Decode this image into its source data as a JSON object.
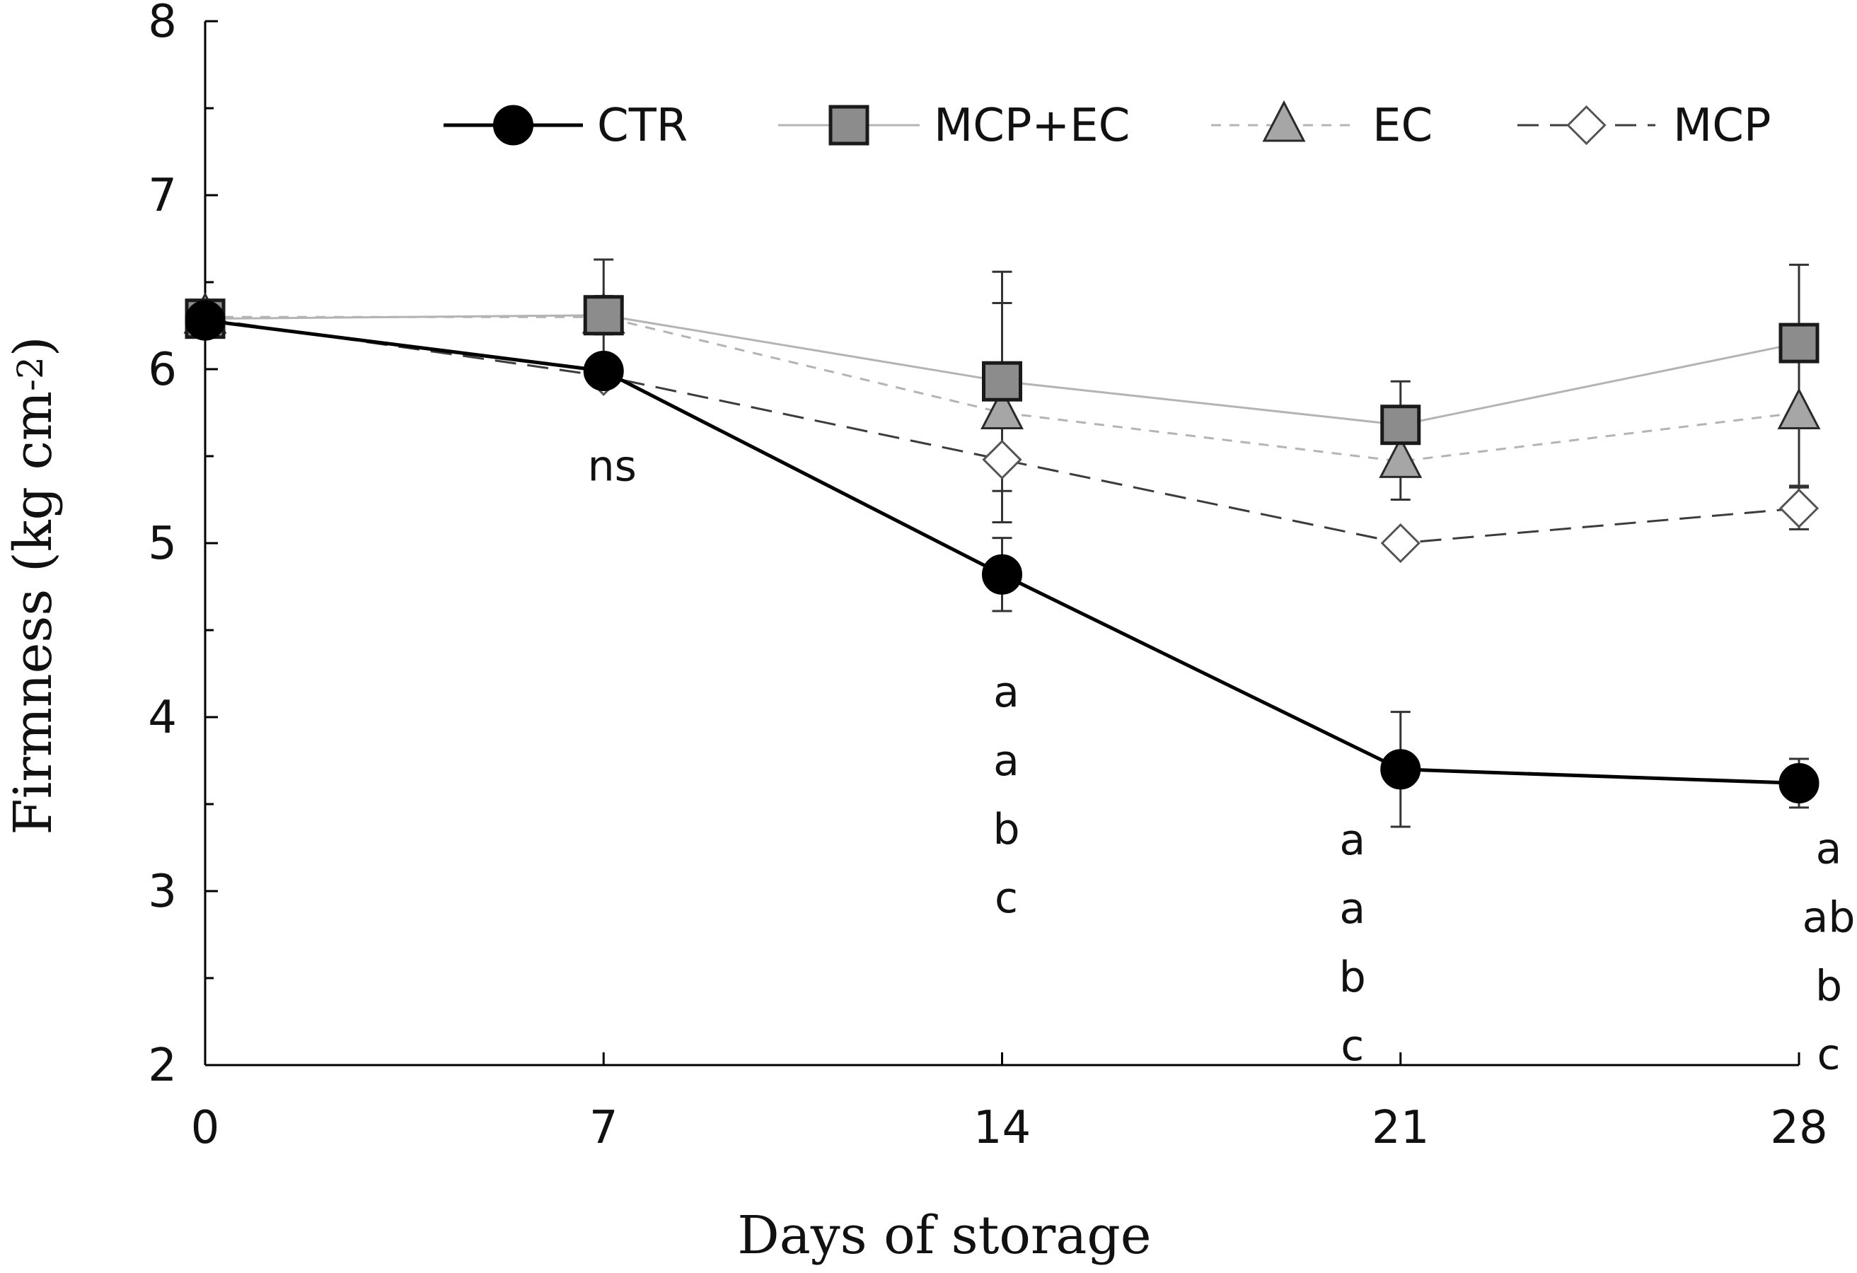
{
  "chart_data": {
    "type": "line",
    "title": "",
    "xlabel": "Days of storage",
    "ylabel": "Firmness (kg cm-2)",
    "ylabel_main": "Firmness (kg cm",
    "ylabel_sup": "-2",
    "ylabel_close": ")",
    "x": [
      0,
      7,
      14,
      21,
      28
    ],
    "x_tick_labels": [
      "0",
      "7",
      "14",
      "21",
      "28"
    ],
    "xlim": [
      0,
      28
    ],
    "ylim": [
      2,
      8
    ],
    "y_ticks": [
      2,
      3,
      4,
      5,
      6,
      7,
      8
    ],
    "y_tick_labels": [
      "2",
      "3",
      "4",
      "5",
      "6",
      "7",
      "8"
    ],
    "grid": false,
    "legend_position": "top",
    "series": [
      {
        "name": "CTR",
        "marker": "circle",
        "line_style": "solid",
        "line_color": "#000000",
        "marker_fill": "#000000",
        "values": [
          6.28,
          5.99,
          4.82,
          3.7,
          3.62
        ],
        "errors": [
          0.0,
          0.08,
          0.21,
          0.33,
          0.14
        ]
      },
      {
        "name": "MCP+EC",
        "marker": "square",
        "line_style": "solid",
        "line_color": "#b4b4b4",
        "marker_fill": "#8c8c8c",
        "values": [
          6.29,
          6.31,
          5.93,
          5.68,
          6.15
        ],
        "errors": [
          0.0,
          0.11,
          0.63,
          0.25,
          0.45
        ]
      },
      {
        "name": "EC",
        "marker": "triangle",
        "line_style": "dotted",
        "line_color": "#b4b4b4",
        "marker_fill": "#a6a6a6",
        "values": [
          6.3,
          6.3,
          5.75,
          5.47,
          5.75
        ],
        "errors": [
          0.0,
          0.33,
          0.63,
          0.22,
          0.42
        ]
      },
      {
        "name": "MCP",
        "marker": "diamond-open",
        "line_style": "dashed",
        "line_color": "#3c3c3c",
        "marker_fill": "#ffffff",
        "values": [
          6.29,
          5.96,
          5.48,
          5.0,
          5.2
        ],
        "errors": [
          0.0,
          0.05,
          0.36,
          0.05,
          0.12
        ]
      }
    ],
    "annotations": [
      {
        "x": 7,
        "labels": [
          "ns"
        ]
      },
      {
        "x": 14,
        "labels": [
          "a",
          "a",
          "b",
          "c"
        ]
      },
      {
        "x": 21,
        "labels": [
          "a",
          "a",
          "b",
          "c"
        ]
      },
      {
        "x": 28,
        "labels": [
          "a",
          "ab",
          "b",
          "c"
        ]
      }
    ]
  }
}
